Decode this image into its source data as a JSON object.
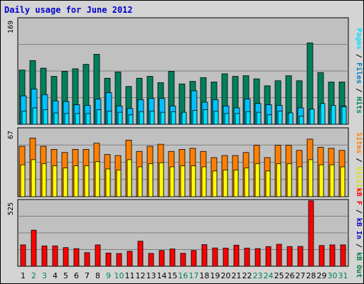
{
  "title": "Daily usage for June 2012",
  "colors": {
    "hits": "#00805c",
    "files": "#00c0ff",
    "pages": "#00e0ff",
    "visits": "#ffff00",
    "sites": "#ff8000",
    "kbytes": "#ff0000",
    "kb_in": "#0000c0",
    "kb_out": "#008040",
    "weekend": "#00805c"
  },
  "right_labels": {
    "top": [
      {
        "text": "Pages",
        "color": "#00e0ff"
      },
      {
        "text": " / ",
        "color": "#000000"
      },
      {
        "text": "Files",
        "color": "#0080c0"
      },
      {
        "text": " / ",
        "color": "#000000"
      },
      {
        "text": "Hits",
        "color": "#00805c"
      }
    ],
    "mid": [
      {
        "text": "Sites",
        "color": "#ff8000"
      },
      {
        "text": " / ",
        "color": "#000000"
      },
      {
        "text": "Visits",
        "color": "#e0e000"
      }
    ],
    "bot": [
      {
        "text": "kB F",
        "color": "#ff0000"
      },
      {
        "text": " / ",
        "color": "#000000"
      },
      {
        "text": "kB In",
        "color": "#0000c0"
      },
      {
        "text": " / ",
        "color": "#000000"
      },
      {
        "text": "kB Out",
        "color": "#008040"
      }
    ]
  },
  "chart_data": {
    "type": "bar",
    "title": "Daily usage for June 2012",
    "days": [
      "1",
      "2",
      "3",
      "4",
      "5",
      "6",
      "7",
      "8",
      "9",
      "10",
      "11",
      "12",
      "13",
      "14",
      "15",
      "16",
      "17",
      "18",
      "19",
      "20",
      "21",
      "22",
      "23",
      "24",
      "25",
      "26",
      "27",
      "28",
      "29",
      "30",
      "31"
    ],
    "weekend_days": [
      "2",
      "3",
      "9",
      "10",
      "16",
      "17",
      "23",
      "24",
      "30",
      "31"
    ],
    "panels": {
      "usage": {
        "ymax": 169,
        "hits": [
          86,
          101,
          89,
          76,
          84,
          88,
          95,
          111,
          73,
          83,
          60,
          73,
          76,
          66,
          84,
          64,
          68,
          74,
          67,
          80,
          76,
          77,
          72,
          61,
          69,
          77,
          69,
          129,
          82,
          67,
          67
        ],
        "files": [
          45,
          56,
          47,
          37,
          36,
          31,
          30,
          40,
          50,
          29,
          25,
          39,
          41,
          41,
          29,
          17,
          53,
          35,
          39,
          29,
          26,
          40,
          33,
          31,
          30,
          17,
          26,
          23,
          28,
          23,
          29
        ],
        "pages": [
          21,
          26,
          23,
          18,
          17,
          17,
          17,
          23,
          21,
          19,
          15,
          20,
          21,
          19,
          20,
          19,
          22,
          23,
          21,
          17,
          17,
          20,
          19,
          15,
          21,
          18,
          13,
          24,
          33,
          30,
          28
        ]
      },
      "sites": {
        "ymax": 67,
        "sites": [
          49,
          57,
          49,
          46,
          43,
          46,
          46,
          52,
          41,
          40,
          55,
          44,
          49,
          51,
          44,
          46,
          47,
          44,
          38,
          40,
          40,
          43,
          50,
          38,
          50,
          50,
          45,
          56,
          48,
          47,
          45
        ],
        "visits": [
          31,
          36,
          32,
          30,
          28,
          30,
          30,
          34,
          27,
          26,
          36,
          29,
          32,
          33,
          29,
          30,
          30,
          29,
          25,
          26,
          26,
          28,
          32,
          25,
          32,
          32,
          29,
          36,
          31,
          31,
          29
        ]
      },
      "kbytes": {
        "ymax": 525,
        "kbytes": [
          168,
          284,
          160,
          160,
          147,
          139,
          107,
          168,
          104,
          100,
          118,
          197,
          101,
          124,
          136,
          102,
          124,
          170,
          144,
          143,
          166,
          143,
          139,
          155,
          173,
          155,
          156,
          515,
          163,
          168,
          168
        ],
        "kb_in": [
          0,
          0,
          0,
          0,
          0,
          0,
          0,
          0,
          0,
          0,
          0,
          0,
          0,
          0,
          0,
          0,
          0,
          0,
          0,
          0,
          0,
          0,
          0,
          0,
          0,
          0,
          0,
          0,
          0,
          0,
          0
        ],
        "kb_out": [
          0,
          0,
          0,
          0,
          0,
          0,
          0,
          0,
          0,
          0,
          0,
          0,
          0,
          0,
          0,
          0,
          0,
          0,
          0,
          0,
          0,
          0,
          0,
          0,
          0,
          0,
          0,
          0,
          0,
          0,
          0
        ]
      }
    }
  }
}
